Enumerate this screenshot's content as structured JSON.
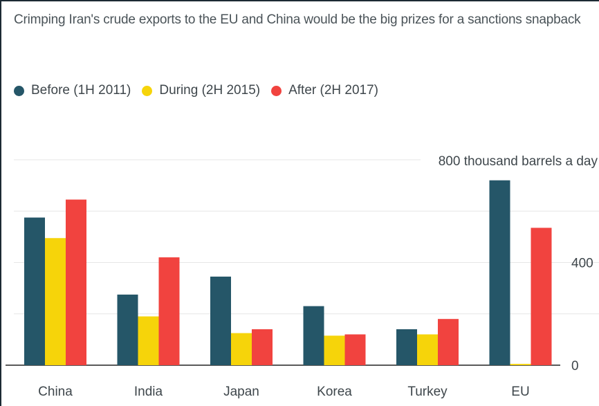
{
  "chart_data": {
    "type": "bar",
    "title": "Crimping Iran's crude exports to the EU and China would be the big prizes for a sanctions snapback",
    "categories": [
      "China",
      "India",
      "Japan",
      "Korea",
      "Turkey",
      "EU"
    ],
    "series": [
      {
        "name": "Before (1H 2011)",
        "color": "#255668",
        "values": [
          575,
          275,
          345,
          230,
          140,
          720
        ]
      },
      {
        "name": "During (2H 2015)",
        "color": "#f6d40a",
        "values": [
          495,
          190,
          125,
          115,
          120,
          5
        ]
      },
      {
        "name": "After (2H 2017)",
        "color": "#f1433f",
        "values": [
          645,
          420,
          140,
          120,
          180,
          535
        ]
      }
    ],
    "ylim": [
      0,
      800
    ],
    "yticks": [
      "0",
      "400"
    ],
    "ylabel_top": "800 thousand barrels a day",
    "grid": true,
    "legend": "top-left"
  }
}
